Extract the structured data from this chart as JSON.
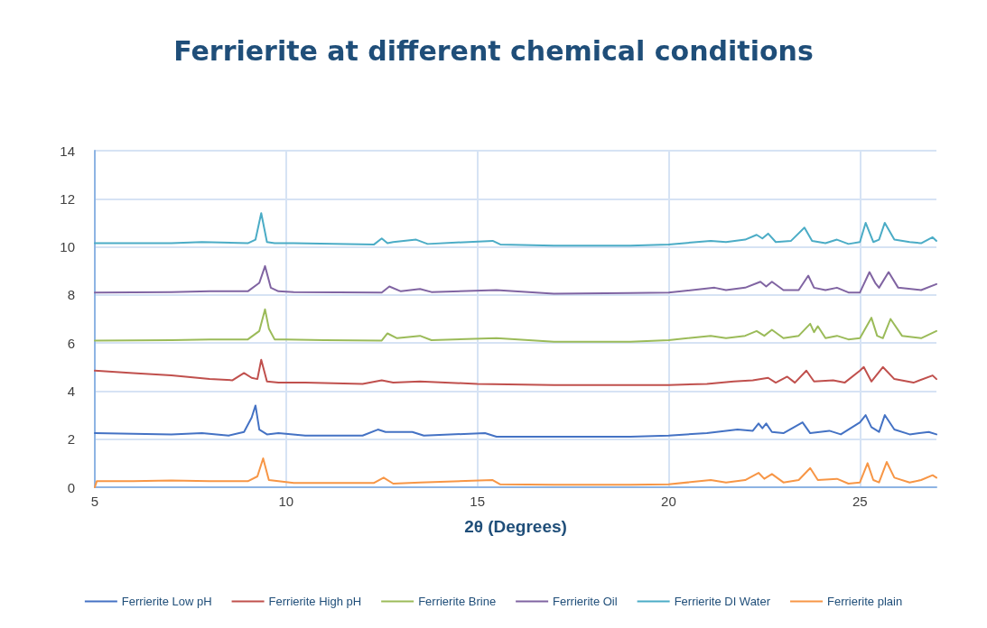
{
  "chart_data": {
    "type": "line",
    "title": "Ferrierite at different chemical conditions",
    "xlabel": "2θ (Degrees)",
    "xlim": [
      5,
      27
    ],
    "xticks": [
      5,
      10,
      15,
      20,
      25
    ],
    "ylim": [
      0,
      14
    ],
    "yticks": [
      0,
      2,
      4,
      6,
      8,
      10,
      12,
      14
    ],
    "grid": true,
    "legend": "bottom",
    "marker": "none",
    "line_style": "solid",
    "series": [
      {
        "name": "Ferrierite Low pH",
        "color": "#4472c4",
        "x": [
          5,
          6,
          7,
          7.8,
          8.5,
          8.9,
          9.1,
          9.2,
          9.3,
          9.5,
          9.8,
          10.5,
          12.0,
          12.4,
          12.6,
          13.3,
          13.6,
          15.2,
          15.5,
          17,
          19,
          20,
          21,
          21.8,
          22.2,
          22.35,
          22.45,
          22.55,
          22.7,
          23.0,
          23.5,
          23.7,
          24.2,
          24.5,
          25.0,
          25.15,
          25.3,
          25.5,
          25.65,
          25.9,
          26.3,
          26.8,
          27
        ],
        "values": [
          2.25,
          2.22,
          2.2,
          2.25,
          2.15,
          2.3,
          2.9,
          3.4,
          2.4,
          2.2,
          2.25,
          2.15,
          2.15,
          2.4,
          2.3,
          2.3,
          2.15,
          2.25,
          2.1,
          2.1,
          2.1,
          2.15,
          2.25,
          2.4,
          2.35,
          2.65,
          2.45,
          2.65,
          2.3,
          2.25,
          2.7,
          2.25,
          2.35,
          2.2,
          2.7,
          3.0,
          2.5,
          2.3,
          3.0,
          2.4,
          2.2,
          2.3,
          2.2
        ]
      },
      {
        "name": "Ferrierite High pH",
        "color": "#c0504d",
        "x": [
          5,
          6,
          7,
          8,
          8.6,
          8.9,
          9.1,
          9.25,
          9.35,
          9.5,
          9.8,
          10.5,
          12,
          12.5,
          12.8,
          13.5,
          15,
          17,
          19,
          20,
          21,
          21.7,
          22.2,
          22.6,
          22.8,
          23.1,
          23.3,
          23.6,
          23.8,
          24.3,
          24.6,
          25.0,
          25.1,
          25.3,
          25.6,
          25.9,
          26.4,
          26.9,
          27
        ],
        "values": [
          4.85,
          4.75,
          4.65,
          4.5,
          4.45,
          4.75,
          4.55,
          4.5,
          5.3,
          4.4,
          4.35,
          4.35,
          4.3,
          4.45,
          4.35,
          4.4,
          4.3,
          4.25,
          4.25,
          4.25,
          4.3,
          4.4,
          4.45,
          4.55,
          4.35,
          4.6,
          4.35,
          4.85,
          4.4,
          4.45,
          4.35,
          4.85,
          5.0,
          4.4,
          5.0,
          4.5,
          4.35,
          4.65,
          4.5
        ]
      },
      {
        "name": "Ferrierite Brine",
        "color": "#9bbb59",
        "x": [
          5,
          7,
          8,
          9.0,
          9.3,
          9.45,
          9.55,
          9.7,
          10.0,
          11,
          12.5,
          12.65,
          12.9,
          13.5,
          13.8,
          15.5,
          17,
          19,
          20,
          21.1,
          21.5,
          22.0,
          22.3,
          22.5,
          22.7,
          23.0,
          23.4,
          23.7,
          23.8,
          23.9,
          24.1,
          24.4,
          24.7,
          25.0,
          25.3,
          25.45,
          25.6,
          25.8,
          26.1,
          26.6,
          27
        ],
        "values": [
          6.1,
          6.12,
          6.15,
          6.15,
          6.5,
          7.4,
          6.6,
          6.15,
          6.15,
          6.12,
          6.1,
          6.4,
          6.2,
          6.3,
          6.12,
          6.2,
          6.05,
          6.05,
          6.12,
          6.3,
          6.2,
          6.3,
          6.5,
          6.3,
          6.55,
          6.2,
          6.3,
          6.8,
          6.45,
          6.7,
          6.2,
          6.3,
          6.15,
          6.2,
          7.05,
          6.3,
          6.2,
          7.0,
          6.3,
          6.2,
          6.5
        ]
      },
      {
        "name": "Ferrierite Oil",
        "color": "#8064a2",
        "x": [
          5,
          7,
          8,
          9.0,
          9.3,
          9.45,
          9.6,
          9.8,
          10.2,
          12.5,
          12.7,
          13.0,
          13.5,
          13.8,
          15.5,
          17,
          19,
          20,
          21.2,
          21.5,
          22.0,
          22.4,
          22.55,
          22.7,
          23.0,
          23.4,
          23.65,
          23.8,
          24.1,
          24.4,
          24.7,
          25.0,
          25.25,
          25.4,
          25.5,
          25.75,
          26.0,
          26.6,
          27
        ],
        "values": [
          8.1,
          8.12,
          8.15,
          8.15,
          8.5,
          9.2,
          8.3,
          8.15,
          8.12,
          8.1,
          8.35,
          8.15,
          8.25,
          8.12,
          8.2,
          8.05,
          8.08,
          8.1,
          8.3,
          8.2,
          8.3,
          8.55,
          8.35,
          8.55,
          8.2,
          8.2,
          8.8,
          8.3,
          8.2,
          8.3,
          8.1,
          8.1,
          8.95,
          8.5,
          8.3,
          8.95,
          8.3,
          8.2,
          8.45
        ]
      },
      {
        "name": "Ferrierite DI Water",
        "color": "#4bacc6",
        "x": [
          5,
          7,
          7.8,
          9.0,
          9.2,
          9.35,
          9.5,
          9.7,
          10.2,
          12.3,
          12.5,
          12.65,
          12.8,
          13.4,
          13.7,
          15.4,
          15.6,
          17,
          19,
          20,
          21.1,
          21.5,
          22.0,
          22.3,
          22.45,
          22.6,
          22.8,
          23.2,
          23.55,
          23.75,
          24.1,
          24.4,
          24.7,
          25.0,
          25.15,
          25.35,
          25.5,
          25.65,
          25.9,
          26.3,
          26.6,
          26.9,
          27
        ],
        "values": [
          10.15,
          10.15,
          10.2,
          10.15,
          10.3,
          11.4,
          10.2,
          10.15,
          10.15,
          10.1,
          10.35,
          10.15,
          10.2,
          10.3,
          10.12,
          10.25,
          10.1,
          10.05,
          10.05,
          10.1,
          10.25,
          10.2,
          10.3,
          10.5,
          10.35,
          10.55,
          10.2,
          10.25,
          10.8,
          10.25,
          10.15,
          10.3,
          10.12,
          10.2,
          11.0,
          10.2,
          10.3,
          11.0,
          10.3,
          10.2,
          10.15,
          10.4,
          10.25
        ]
      },
      {
        "name": "Ferrierite plain",
        "color": "#f79646",
        "x": [
          5,
          5.05,
          6,
          7,
          8,
          9.0,
          9.25,
          9.4,
          9.55,
          9.8,
          10.2,
          12.3,
          12.55,
          12.8,
          13.5,
          15.4,
          15.6,
          17,
          19,
          20,
          21.1,
          21.5,
          22.0,
          22.35,
          22.5,
          22.7,
          23.0,
          23.4,
          23.7,
          23.9,
          24.4,
          24.7,
          25.0,
          25.2,
          25.35,
          25.5,
          25.7,
          25.9,
          26.3,
          26.6,
          26.9,
          27
        ],
        "values": [
          0,
          0.25,
          0.25,
          0.28,
          0.25,
          0.25,
          0.45,
          1.2,
          0.3,
          0.25,
          0.18,
          0.18,
          0.4,
          0.15,
          0.2,
          0.3,
          0.12,
          0.1,
          0.1,
          0.12,
          0.3,
          0.2,
          0.3,
          0.6,
          0.35,
          0.55,
          0.2,
          0.3,
          0.8,
          0.3,
          0.35,
          0.15,
          0.2,
          1.0,
          0.3,
          0.2,
          1.05,
          0.4,
          0.2,
          0.3,
          0.5,
          0.4
        ]
      }
    ]
  }
}
